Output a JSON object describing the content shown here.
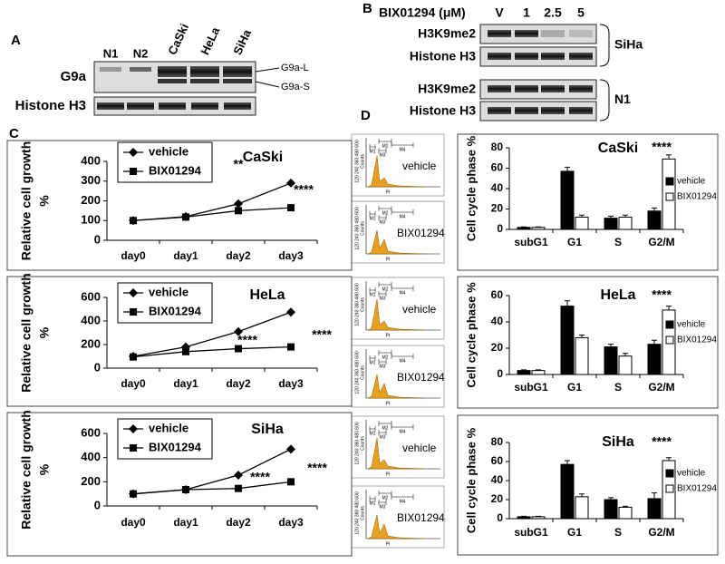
{
  "panel_labels": [
    "A",
    "B",
    "C",
    "D"
  ],
  "blot_a": {
    "lanes": [
      "N1",
      "N2",
      "CaSki",
      "HeLa",
      "SiHa"
    ],
    "rows": [
      "G9a",
      "Histone H3"
    ],
    "bands": [
      "G9a-L",
      "G9a-S"
    ]
  },
  "blot_b": {
    "treatment": "BIX01294 (μM)",
    "lanes": [
      "V",
      "1",
      "2.5",
      "5"
    ],
    "groups": [
      {
        "name": "SiHa",
        "rows": [
          "H3K9me2",
          "Histone H3"
        ]
      },
      {
        "name": "N1",
        "rows": [
          "H3K9me2",
          "Histone H3"
        ]
      }
    ]
  },
  "flow": {
    "y_axis": "Counts",
    "x_axis": "PI",
    "y_ticks": "120 240 360 480 600",
    "gates": [
      "M1",
      "M2",
      "M3",
      "M4"
    ],
    "panels": [
      "vehicle",
      "BIX01294",
      "vehicle",
      "BIX01294",
      "vehicle",
      "BIX01294"
    ]
  },
  "chart_data": [
    {
      "type": "line",
      "title": "CaSki",
      "y_label": "Relative cell growth",
      "y_unit": "%",
      "categories": [
        "day0",
        "day1",
        "day2",
        "day3"
      ],
      "series": [
        {
          "name": "vehicle",
          "color": "#000000",
          "marker": "diamond",
          "values": [
            100,
            120,
            185,
            290
          ]
        },
        {
          "name": "BIX01294",
          "color": "#000000",
          "marker": "square",
          "values": [
            100,
            118,
            150,
            165
          ]
        }
      ],
      "ylim": [
        0,
        400
      ],
      "yticks": [
        0,
        100,
        200,
        300,
        400
      ],
      "annotations": [
        "**",
        "****"
      ],
      "legend": "upper left"
    },
    {
      "type": "line",
      "title": "HeLa",
      "y_label": "Relative cell growth",
      "y_unit": "%",
      "categories": [
        "day0",
        "day1",
        "day2",
        "day3"
      ],
      "series": [
        {
          "name": "vehicle",
          "color": "#000000",
          "marker": "diamond",
          "values": [
            100,
            180,
            310,
            475
          ]
        },
        {
          "name": "BIX01294",
          "color": "#000000",
          "marker": "square",
          "values": [
            95,
            140,
            165,
            180
          ]
        }
      ],
      "ylim": [
        0,
        600
      ],
      "yticks": [
        0,
        200,
        400,
        600
      ],
      "annotations": [
        "****",
        "****"
      ],
      "legend": "upper left"
    },
    {
      "type": "line",
      "title": "SiHa",
      "y_label": "Relative cell growth",
      "y_unit": "%",
      "categories": [
        "day0",
        "day1",
        "day2",
        "day3"
      ],
      "series": [
        {
          "name": "vehicle",
          "color": "#000000",
          "marker": "diamond",
          "values": [
            100,
            135,
            255,
            470
          ]
        },
        {
          "name": "BIX01294",
          "color": "#000000",
          "marker": "square",
          "values": [
            100,
            135,
            145,
            200
          ]
        }
      ],
      "ylim": [
        0,
        600
      ],
      "yticks": [
        0,
        200,
        400,
        600
      ],
      "annotations": [
        "****",
        "****"
      ],
      "legend": "upper left"
    },
    {
      "type": "bar",
      "title": "CaSki",
      "y_label": "Cell cycle phase %",
      "categories": [
        "subG1",
        "G1",
        "S",
        "G2/M"
      ],
      "series": [
        {
          "name": "vehicle",
          "color": "#000000",
          "values": [
            2,
            57,
            11,
            18
          ],
          "errors": [
            0.5,
            4,
            2,
            3
          ]
        },
        {
          "name": "BIX01294",
          "color": "#ffffff",
          "values": [
            2,
            12,
            12,
            69
          ],
          "errors": [
            0.5,
            2,
            2,
            4
          ]
        }
      ],
      "ylim": [
        0,
        80
      ],
      "yticks": [
        0,
        20,
        40,
        60,
        80
      ],
      "annotations": [
        "****"
      ],
      "legend": "right"
    },
    {
      "type": "bar",
      "title": "HeLa",
      "y_label": "Cell cycle phase %",
      "categories": [
        "subG1",
        "G1",
        "S",
        "G2/M"
      ],
      "series": [
        {
          "name": "vehicle",
          "color": "#000000",
          "values": [
            3,
            52,
            21,
            23
          ],
          "errors": [
            0.5,
            4,
            2,
            3
          ]
        },
        {
          "name": "BIX01294",
          "color": "#ffffff",
          "values": [
            3,
            28,
            14,
            49
          ],
          "errors": [
            0.5,
            2,
            2,
            3
          ]
        }
      ],
      "ylim": [
        0,
        60
      ],
      "yticks": [
        0,
        20,
        40,
        60
      ],
      "annotations": [
        "****"
      ],
      "legend": "right"
    },
    {
      "type": "bar",
      "title": "SiHa",
      "y_label": "Cell cycle phase %",
      "categories": [
        "subG1",
        "G1",
        "S",
        "G2/M"
      ],
      "series": [
        {
          "name": "vehicle",
          "color": "#000000",
          "values": [
            2,
            57,
            20,
            21
          ],
          "errors": [
            0.5,
            4,
            2,
            6
          ]
        },
        {
          "name": "BIX01294",
          "color": "#ffffff",
          "values": [
            2,
            23,
            12,
            61
          ],
          "errors": [
            0.5,
            3,
            1,
            3
          ]
        }
      ],
      "ylim": [
        0,
        80
      ],
      "yticks": [
        0,
        20,
        40,
        60,
        80
      ],
      "annotations": [
        "****"
      ],
      "legend": "right"
    }
  ]
}
